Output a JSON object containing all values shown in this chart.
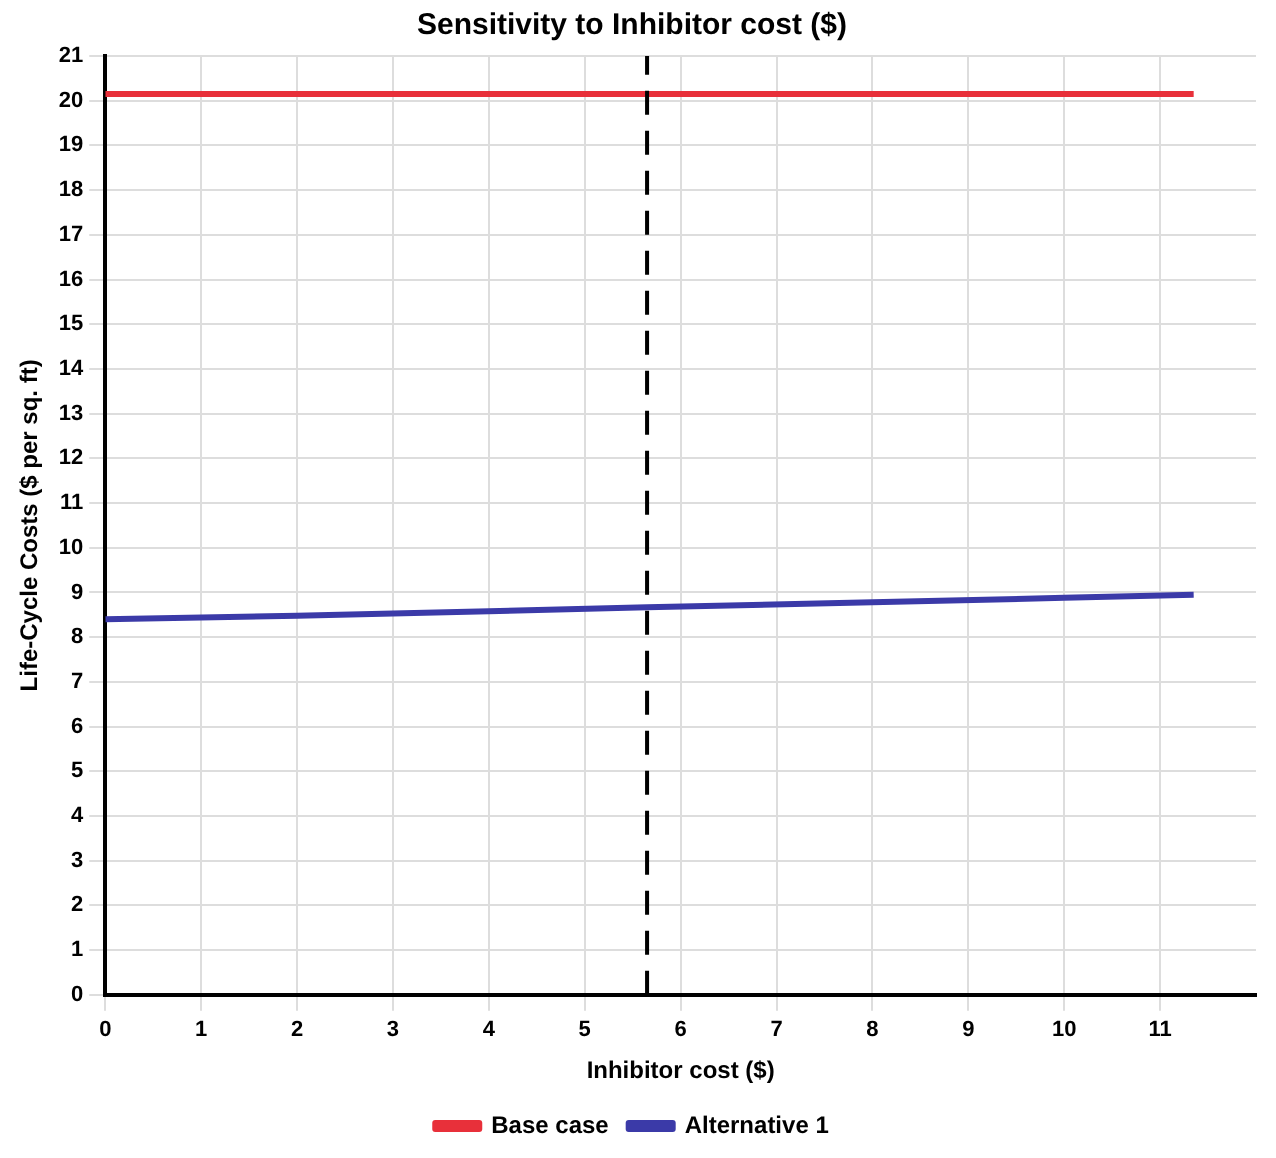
{
  "chart_data": {
    "type": "line",
    "title": "Sensitivity to Inhibitor cost ($)",
    "xlabel": "Inhibitor cost ($)",
    "ylabel": "Life-Cycle Costs ($ per sq. ft)",
    "xlim": [
      0,
      12
    ],
    "xticks": [
      0,
      1,
      2,
      3,
      4,
      5,
      6,
      7,
      8,
      9,
      10,
      11
    ],
    "ylim": [
      0,
      21
    ],
    "yticks": [
      0,
      1,
      2,
      3,
      4,
      5,
      6,
      7,
      8,
      9,
      10,
      11,
      12,
      13,
      14,
      15,
      16,
      17,
      18,
      19,
      20,
      21
    ],
    "grid": true,
    "legend": "bottom",
    "marker": "none",
    "line_style": "solid",
    "ref_lines": [
      {
        "axis": "x",
        "value": 5.65,
        "color": "#000000",
        "line_style": "dashed"
      }
    ],
    "series": [
      {
        "name": "Base case",
        "color": "#e8303a",
        "x": [
          0,
          11.35
        ],
        "values": [
          20.15,
          20.15
        ]
      },
      {
        "name": "Alternative 1",
        "color": "#3b3aa8",
        "x": [
          0,
          2,
          4,
          5.65,
          8,
          10,
          11.35
        ],
        "values": [
          8.4,
          8.48,
          8.58,
          8.67,
          8.78,
          8.88,
          8.95
        ]
      }
    ]
  }
}
